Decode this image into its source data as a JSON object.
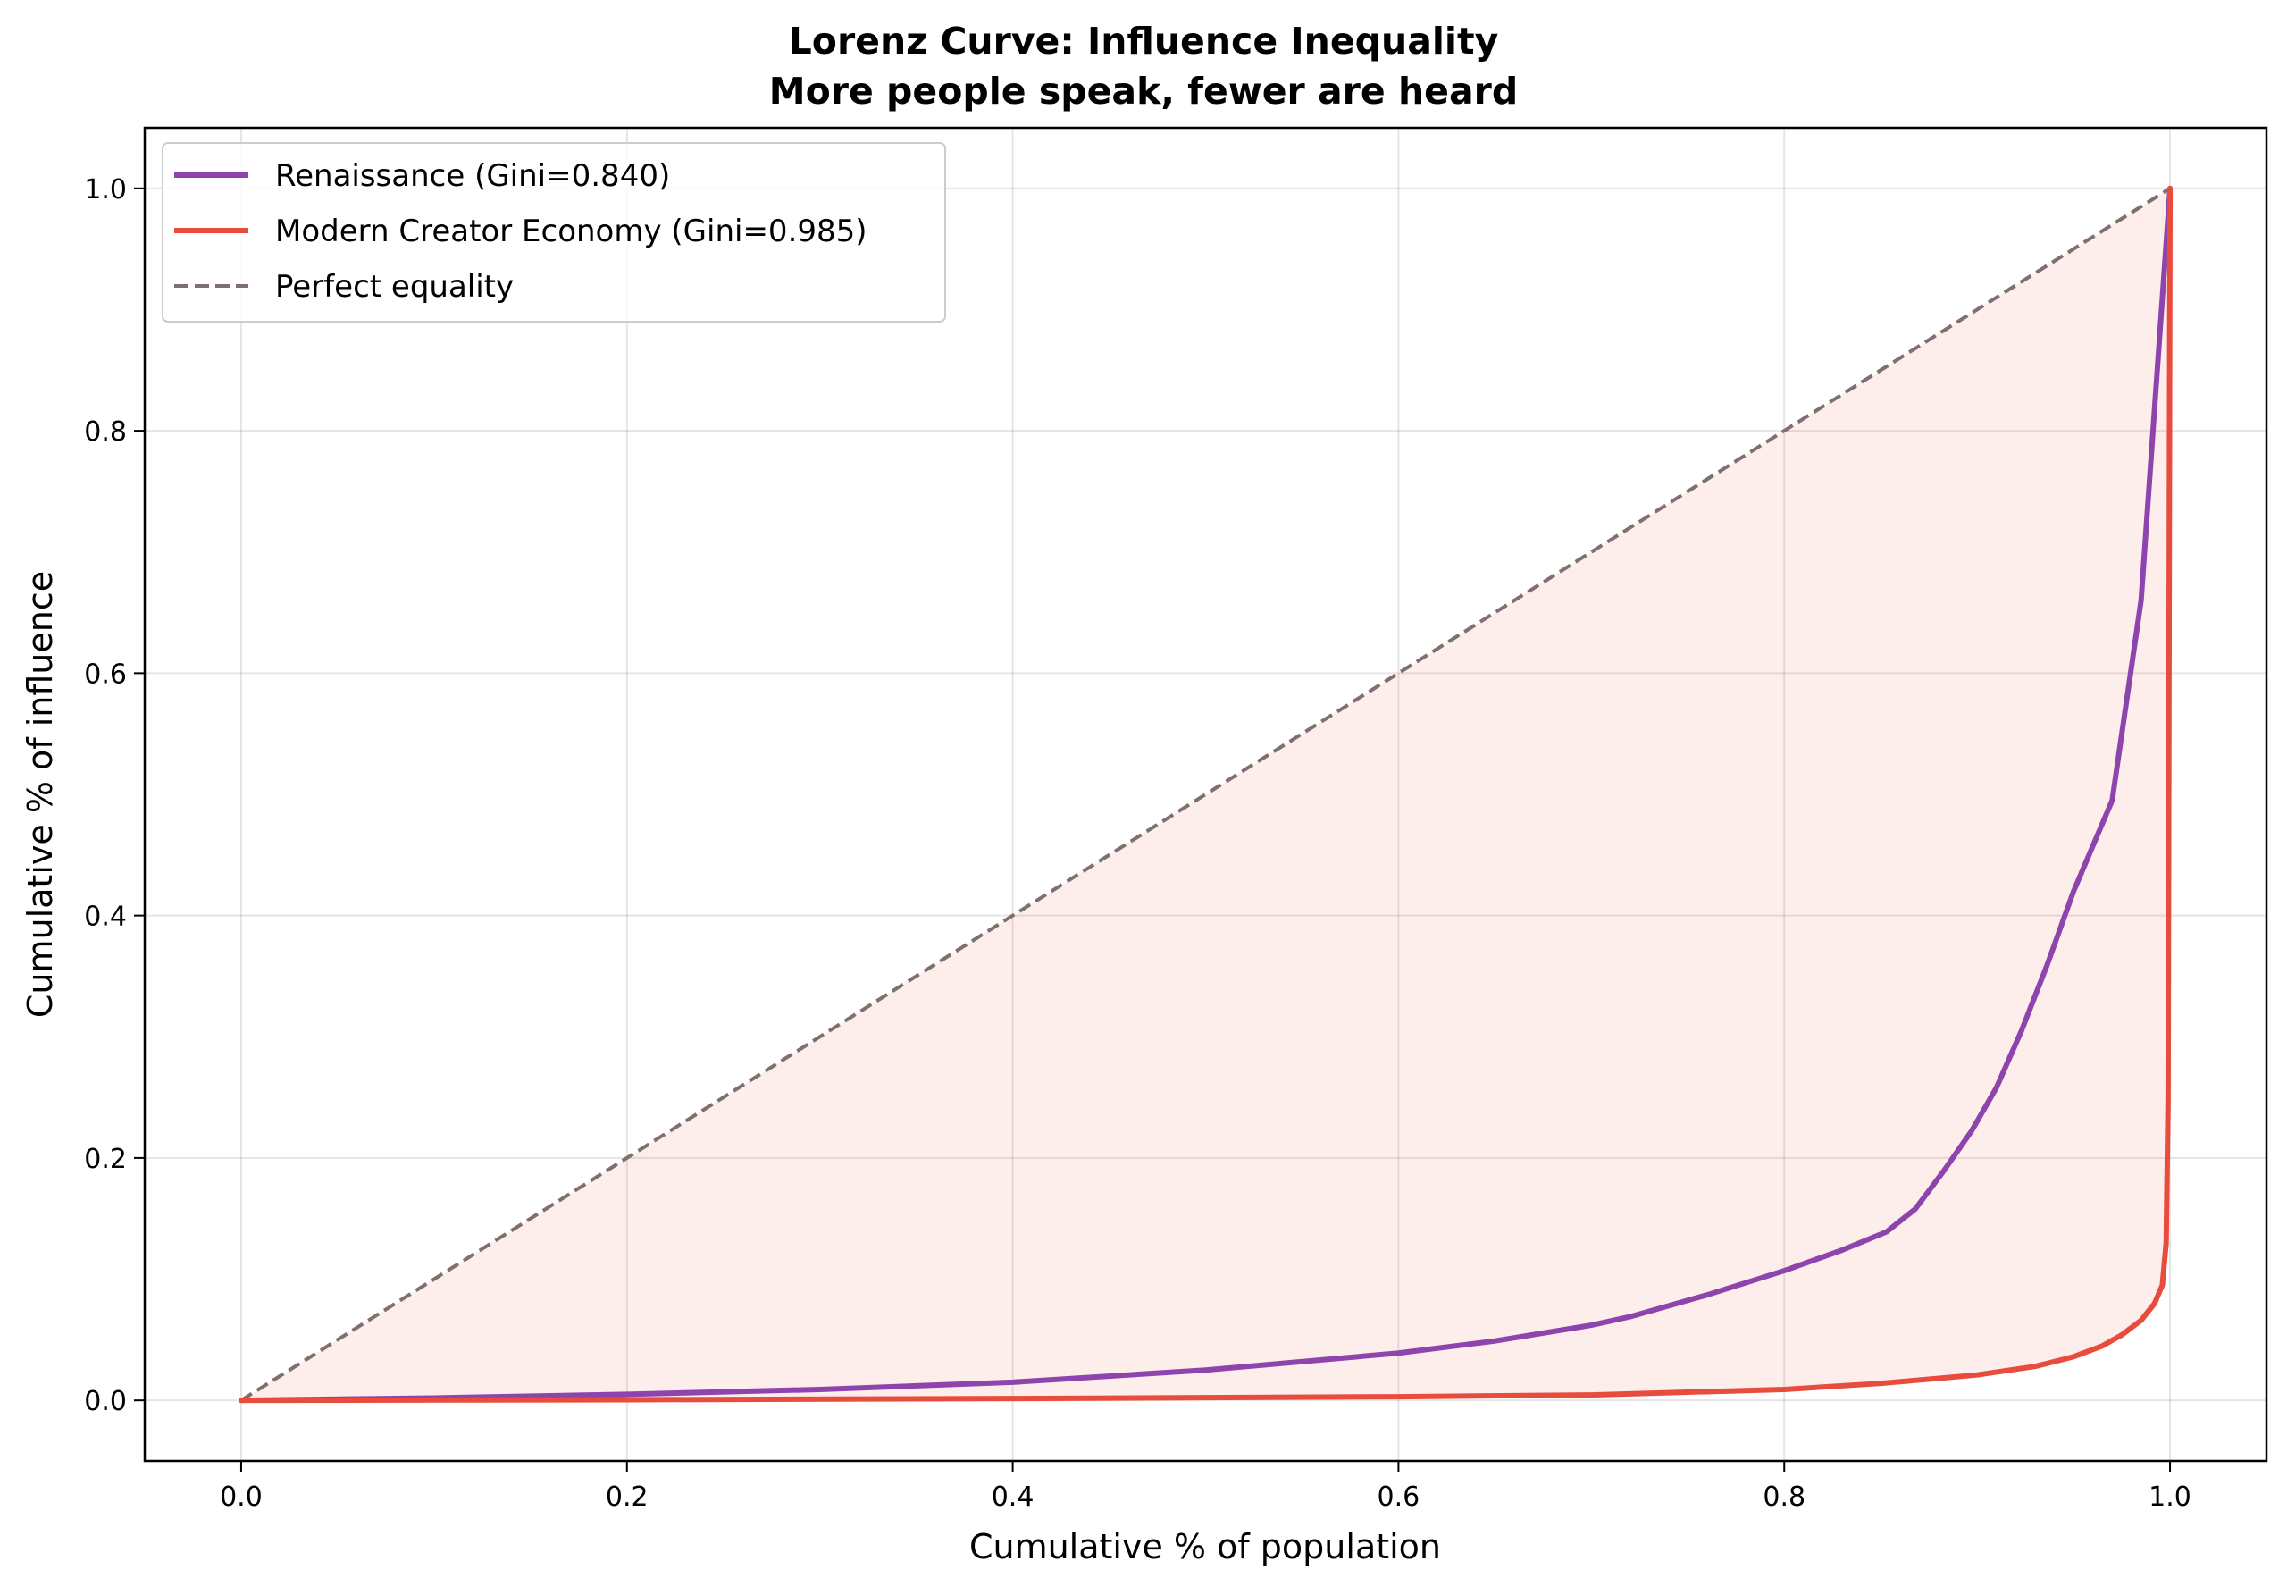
{
  "chart_data": {
    "type": "line",
    "title": "Lorenz Curve: Influence Inequality",
    "subtitle": "More people speak, fewer are heard",
    "xlabel": "Cumulative % of population",
    "ylabel": "Cumulative % of influence",
    "xlim": [
      -0.05,
      1.05
    ],
    "ylim": [
      -0.05,
      1.05
    ],
    "xticks": [
      "0.0",
      "0.2",
      "0.4",
      "0.6",
      "0.8",
      "1.0"
    ],
    "yticks": [
      "0.0",
      "0.2",
      "0.4",
      "0.6",
      "0.8",
      "1.0"
    ],
    "grid": true,
    "legend_position": "top-left",
    "series": [
      {
        "name": "Renaissance (Gini=0.840)",
        "color": "#8e44ad",
        "x": [
          0,
          0.1,
          0.2,
          0.3,
          0.4,
          0.5,
          0.6,
          0.65,
          0.7,
          0.72,
          0.76,
          0.8,
          0.83,
          0.853,
          0.868,
          0.883,
          0.897,
          0.91,
          0.923,
          0.936,
          0.95,
          0.97,
          0.985,
          1.0
        ],
        "y": [
          0,
          0.002,
          0.005,
          0.009,
          0.015,
          0.025,
          0.039,
          0.049,
          0.062,
          0.069,
          0.087,
          0.107,
          0.124,
          0.139,
          0.158,
          0.19,
          0.222,
          0.258,
          0.305,
          0.358,
          0.42,
          0.495,
          0.66,
          1.0
        ]
      },
      {
        "name": "Modern Creator Economy (Gini=0.985)",
        "color": "#e74c3c",
        "x": [
          0,
          0.2,
          0.4,
          0.6,
          0.7,
          0.8,
          0.85,
          0.9,
          0.93,
          0.95,
          0.965,
          0.975,
          0.985,
          0.992,
          0.996,
          0.998,
          0.999,
          1.0
        ],
        "y": [
          0,
          0.0005,
          0.0015,
          0.003,
          0.0045,
          0.009,
          0.014,
          0.021,
          0.028,
          0.036,
          0.045,
          0.054,
          0.066,
          0.08,
          0.095,
          0.13,
          0.25,
          1.0
        ]
      },
      {
        "name": "Perfect equality",
        "color": "#7f6f6f",
        "dashed": true,
        "x": [
          0,
          1
        ],
        "y": [
          0,
          1
        ]
      }
    ],
    "fill_between": {
      "upper": "Perfect equality",
      "lower": "Modern Creator Economy (Gini=0.985)",
      "color": "#e74c3c",
      "opacity": 0.1
    }
  }
}
